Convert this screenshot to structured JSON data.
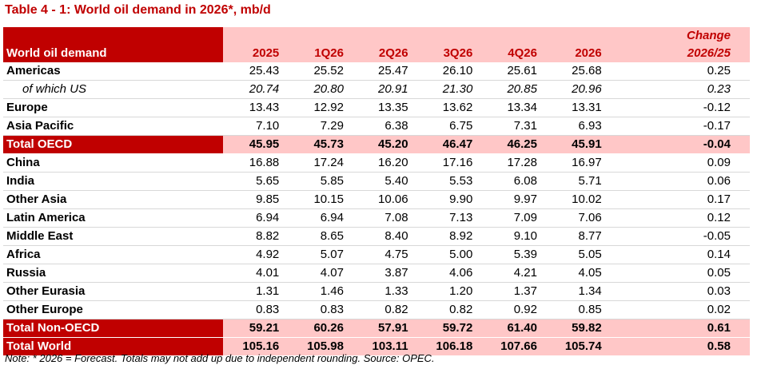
{
  "title": "Table 4 - 1: World oil demand in 2026*, mb/d",
  "header": {
    "label": "World oil demand",
    "columns": [
      "2025",
      "1Q26",
      "2Q26",
      "3Q26",
      "4Q26",
      "2026"
    ],
    "change_line1": "Change",
    "change_line2": "2026/25"
  },
  "rows": [
    {
      "label": "Americas",
      "values": [
        "25.43",
        "25.52",
        "25.47",
        "26.10",
        "25.61",
        "25.68"
      ],
      "change": "0.25"
    },
    {
      "label": "of which US",
      "values": [
        "20.74",
        "20.80",
        "20.91",
        "21.30",
        "20.85",
        "20.96"
      ],
      "change": "0.23"
    },
    {
      "label": "Europe",
      "values": [
        "13.43",
        "12.92",
        "13.35",
        "13.62",
        "13.34",
        "13.31"
      ],
      "change": "-0.12"
    },
    {
      "label": "Asia Pacific",
      "values": [
        "7.10",
        "7.29",
        "6.38",
        "6.75",
        "7.31",
        "6.93"
      ],
      "change": "-0.17"
    },
    {
      "label": "Total OECD",
      "values": [
        "45.95",
        "45.73",
        "45.20",
        "46.47",
        "46.25",
        "45.91"
      ],
      "change": "-0.04"
    },
    {
      "label": "China",
      "values": [
        "16.88",
        "17.24",
        "16.20",
        "17.16",
        "17.28",
        "16.97"
      ],
      "change": "0.09"
    },
    {
      "label": "India",
      "values": [
        "5.65",
        "5.85",
        "5.40",
        "5.53",
        "6.08",
        "5.71"
      ],
      "change": "0.06"
    },
    {
      "label": "Other Asia",
      "values": [
        "9.85",
        "10.15",
        "10.06",
        "9.90",
        "9.97",
        "10.02"
      ],
      "change": "0.17"
    },
    {
      "label": "Latin America",
      "values": [
        "6.94",
        "6.94",
        "7.08",
        "7.13",
        "7.09",
        "7.06"
      ],
      "change": "0.12"
    },
    {
      "label": "Middle East",
      "values": [
        "8.82",
        "8.65",
        "8.40",
        "8.92",
        "9.10",
        "8.77"
      ],
      "change": "-0.05"
    },
    {
      "label": "Africa",
      "values": [
        "4.92",
        "5.07",
        "4.75",
        "5.00",
        "5.39",
        "5.05"
      ],
      "change": "0.14"
    },
    {
      "label": "Russia",
      "values": [
        "4.01",
        "4.07",
        "3.87",
        "4.06",
        "4.21",
        "4.05"
      ],
      "change": "0.05"
    },
    {
      "label": "Other Eurasia",
      "values": [
        "1.31",
        "1.46",
        "1.33",
        "1.20",
        "1.37",
        "1.34"
      ],
      "change": "0.03"
    },
    {
      "label": "Other Europe",
      "values": [
        "0.83",
        "0.83",
        "0.82",
        "0.82",
        "0.92",
        "0.85"
      ],
      "change": "0.02"
    },
    {
      "label": "Total Non-OECD",
      "values": [
        "59.21",
        "60.26",
        "57.91",
        "59.72",
        "61.40",
        "59.82"
      ],
      "change": "0.61"
    },
    {
      "label": "Total World",
      "values": [
        "105.16",
        "105.98",
        "103.11",
        "106.18",
        "107.66",
        "105.74"
      ],
      "change": "0.58"
    }
  ],
  "note": "Note: * 2026 = Forecast. Totals may not add up due to independent rounding. Source: OPEC.",
  "colors": {
    "accent": "#c00000",
    "header_fill": "#ffc7c7"
  }
}
